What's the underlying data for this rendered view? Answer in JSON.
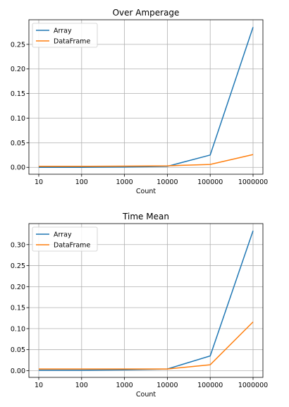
{
  "chart_data": [
    {
      "type": "line",
      "title": "Over Amperage",
      "xlabel": "Count",
      "ylabel": "",
      "x": [
        "10",
        "100",
        "1000",
        "10000",
        "100000",
        "1000000"
      ],
      "ylim": [
        -0.014,
        0.3
      ],
      "yticks": [
        "0.00",
        "0.05",
        "0.10",
        "0.15",
        "0.20",
        "0.25"
      ],
      "grid": true,
      "legend": "top-left",
      "series": [
        {
          "name": "Array",
          "color": "#1f77b4",
          "values": [
            0.0,
            0.0,
            0.0005,
            0.002,
            0.025,
            0.285
          ]
        },
        {
          "name": "DataFrame",
          "color": "#ff7f0e",
          "values": [
            0.002,
            0.002,
            0.0025,
            0.003,
            0.006,
            0.026
          ]
        }
      ]
    },
    {
      "type": "line",
      "title": "Time Mean",
      "xlabel": "Count",
      "ylabel": "",
      "x": [
        "10",
        "100",
        "1000",
        "10000",
        "100000",
        "1000000"
      ],
      "ylim": [
        -0.016,
        0.35
      ],
      "yticks": [
        "0.00",
        "0.05",
        "0.10",
        "0.15",
        "0.20",
        "0.25",
        "0.30"
      ],
      "grid": true,
      "legend": "top-left",
      "series": [
        {
          "name": "Array",
          "color": "#1f77b4",
          "values": [
            0.001,
            0.001,
            0.002,
            0.004,
            0.035,
            0.333
          ]
        },
        {
          "name": "DataFrame",
          "color": "#ff7f0e",
          "values": [
            0.004,
            0.004,
            0.004,
            0.004,
            0.014,
            0.116
          ]
        }
      ]
    }
  ]
}
